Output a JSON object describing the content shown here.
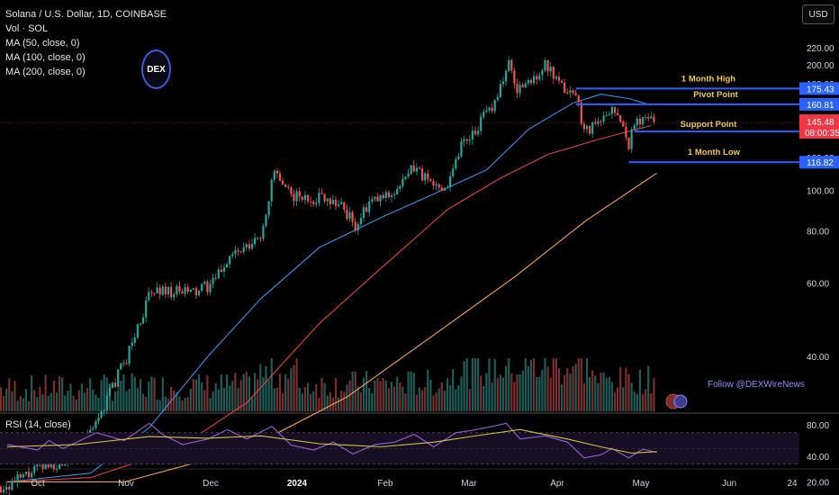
{
  "legend": {
    "symbol": "Solana / U.S. Dollar, 1D, COINBASE",
    "volume": "Vol · SOL",
    "ma50": "MA (50, close, 0)",
    "ma100": "MA (100, close, 0)",
    "ma200": "MA (200, close, 0)"
  },
  "currency": "USD",
  "logo_text": "DEX",
  "watermark": "Follow @DEXWireNews",
  "rsi_label": "RSI (14, close)",
  "colors": {
    "up": "#26a69a",
    "down": "#ef5350",
    "ma50": "#3d8fe0",
    "ma100": "#e0453d",
    "ma200": "#f5a25a",
    "level": "#2962ff",
    "label_text": "#f2c94c",
    "rsi": "#9c5bd6",
    "rsi_ma": "#d6c340"
  },
  "chart_data": [
    {
      "type": "candlestick",
      "title": "Solana / U.S. Dollar, 1D, COINBASE",
      "xlabel": "",
      "ylabel": "",
      "x_ticks": [
        "Oct",
        "Nov",
        "Dec",
        "2024",
        "Feb",
        "Mar",
        "Apr",
        "May",
        "Jun",
        "24"
      ],
      "y_ticks": [
        "220.00",
        "200.00",
        "180.00",
        "160.00",
        "140.00",
        "120.00",
        "100.00",
        "80.00",
        "60.00",
        "40.00",
        "20.00"
      ],
      "y_range": [
        10,
        225
      ],
      "close_path": [
        [
          "2023-09-20",
          19.5
        ],
        [
          "2023-10-01",
          21.5
        ],
        [
          "2023-10-10",
          22.5
        ],
        [
          "2023-10-20",
          26
        ],
        [
          "2023-10-27",
          33
        ],
        [
          "2023-11-02",
          40
        ],
        [
          "2023-11-10",
          56
        ],
        [
          "2023-11-14",
          58
        ],
        [
          "2023-11-20",
          57
        ],
        [
          "2023-11-27",
          57
        ],
        [
          "2023-12-03",
          60
        ],
        [
          "2023-12-09",
          70
        ],
        [
          "2023-12-15",
          72
        ],
        [
          "2023-12-20",
          78
        ],
        [
          "2023-12-25",
          112
        ],
        [
          "2023-12-28",
          100
        ],
        [
          "2024-01-05",
          95
        ],
        [
          "2024-01-12",
          97
        ],
        [
          "2024-01-18",
          92
        ],
        [
          "2024-01-23",
          82
        ],
        [
          "2024-01-28",
          93
        ],
        [
          "2024-02-03",
          97
        ],
        [
          "2024-02-08",
          102
        ],
        [
          "2024-02-13",
          114
        ],
        [
          "2024-02-20",
          102
        ],
        [
          "2024-02-25",
          104
        ],
        [
          "2024-03-01",
          130
        ],
        [
          "2024-03-06",
          140
        ],
        [
          "2024-03-12",
          160
        ],
        [
          "2024-03-18",
          200
        ],
        [
          "2024-03-21",
          175
        ],
        [
          "2024-03-25",
          180
        ],
        [
          "2024-03-31",
          200
        ],
        [
          "2024-04-05",
          178
        ],
        [
          "2024-04-11",
          170
        ],
        [
          "2024-04-14",
          140
        ],
        [
          "2024-04-20",
          145
        ],
        [
          "2024-04-24",
          160
        ],
        [
          "2024-04-30",
          130
        ],
        [
          "2024-05-03",
          148
        ],
        [
          "2024-05-08",
          150
        ],
        [
          "2024-05-10",
          145.48
        ]
      ],
      "last_price": "145.48",
      "countdown": "08:00:35",
      "levels": [
        {
          "name": "1 Month High",
          "value": 175.43,
          "label": "175.43",
          "start": "2024-04-11"
        },
        {
          "name": "Pivot Point",
          "value": 160.81,
          "label": "160.81",
          "start": "2024-04-11"
        },
        {
          "name": "Support Point",
          "value": 138.38,
          "label": "138.38",
          "start": "2024-05-02"
        },
        {
          "name": "1 Month Low",
          "value": 116.82,
          "label": "116.82",
          "start": "2024-04-30"
        }
      ],
      "moving_averages": [
        {
          "name": "MA (50, close, 0)",
          "points": [
            [
              "2023-09-20",
              20
            ],
            [
              "2023-10-20",
              21
            ],
            [
              "2023-11-10",
              27
            ],
            [
              "2023-12-01",
              40
            ],
            [
              "2023-12-20",
              55
            ],
            [
              "2024-01-10",
              73
            ],
            [
              "2024-02-01",
              86
            ],
            [
              "2024-02-20",
              98
            ],
            [
              "2024-03-10",
              112
            ],
            [
              "2024-03-25",
              140
            ],
            [
              "2024-04-10",
              162
            ],
            [
              "2024-04-20",
              170
            ],
            [
              "2024-04-30",
              166
            ],
            [
              "2024-05-08",
              160
            ]
          ]
        },
        {
          "name": "MA (100, close, 0)",
          "points": [
            [
              "2023-09-20",
              20
            ],
            [
              "2023-10-20",
              20.5
            ],
            [
              "2023-11-20",
              24
            ],
            [
              "2023-12-15",
              31
            ],
            [
              "2024-01-10",
              48
            ],
            [
              "2024-02-01",
              65
            ],
            [
              "2024-02-25",
              90
            ],
            [
              "2024-03-15",
              107
            ],
            [
              "2024-04-01",
              122
            ],
            [
              "2024-04-20",
              133
            ],
            [
              "2024-05-08",
              143
            ]
          ]
        },
        {
          "name": "MA (200, close, 0)",
          "points": [
            [
              "2023-09-20",
              20
            ],
            [
              "2023-11-01",
              20
            ],
            [
              "2023-12-15",
              24
            ],
            [
              "2024-01-20",
              32
            ],
            [
              "2024-02-20",
              45
            ],
            [
              "2024-03-20",
              62
            ],
            [
              "2024-04-15",
              85
            ],
            [
              "2024-05-10",
              110
            ]
          ]
        }
      ],
      "volume_y_range": [
        0,
        40
      ]
    },
    {
      "type": "line",
      "title": "RSI (14, close)",
      "y_ticks": [
        "80.00",
        "40.00"
      ],
      "y_range": [
        25,
        90
      ],
      "band": [
        70,
        30
      ],
      "rsi": [
        [
          "2023-09-20",
          55
        ],
        [
          "2023-10-01",
          48
        ],
        [
          "2023-10-05",
          60
        ],
        [
          "2023-10-10",
          50
        ],
        [
          "2023-10-15",
          58
        ],
        [
          "2023-10-22",
          70
        ],
        [
          "2023-11-01",
          60
        ],
        [
          "2023-11-10",
          82
        ],
        [
          "2023-11-15",
          67
        ],
        [
          "2023-11-22",
          55
        ],
        [
          "2023-12-01",
          62
        ],
        [
          "2023-12-08",
          74
        ],
        [
          "2023-12-15",
          62
        ],
        [
          "2023-12-24",
          78
        ],
        [
          "2023-12-31",
          54
        ],
        [
          "2024-01-08",
          48
        ],
        [
          "2024-01-15",
          58
        ],
        [
          "2024-01-22",
          43
        ],
        [
          "2024-01-30",
          55
        ],
        [
          "2024-02-06",
          58
        ],
        [
          "2024-02-13",
          68
        ],
        [
          "2024-02-20",
          52
        ],
        [
          "2024-02-28",
          70
        ],
        [
          "2024-03-05",
          73
        ],
        [
          "2024-03-12",
          78
        ],
        [
          "2024-03-17",
          82
        ],
        [
          "2024-03-22",
          62
        ],
        [
          "2024-03-31",
          66
        ],
        [
          "2024-04-08",
          58
        ],
        [
          "2024-04-14",
          38
        ],
        [
          "2024-04-20",
          42
        ],
        [
          "2024-04-24",
          50
        ],
        [
          "2024-04-30",
          38
        ],
        [
          "2024-05-05",
          49
        ],
        [
          "2024-05-10",
          45
        ]
      ],
      "rsi_ma": [
        [
          "2023-09-20",
          52
        ],
        [
          "2023-10-15",
          55
        ],
        [
          "2023-11-10",
          65
        ],
        [
          "2023-12-01",
          63
        ],
        [
          "2023-12-20",
          66
        ],
        [
          "2024-01-10",
          56
        ],
        [
          "2024-02-01",
          52
        ],
        [
          "2024-02-20",
          58
        ],
        [
          "2024-03-10",
          68
        ],
        [
          "2024-03-22",
          74
        ],
        [
          "2024-04-08",
          62
        ],
        [
          "2024-04-20",
          52
        ],
        [
          "2024-05-01",
          44
        ],
        [
          "2024-05-10",
          46
        ]
      ]
    }
  ]
}
